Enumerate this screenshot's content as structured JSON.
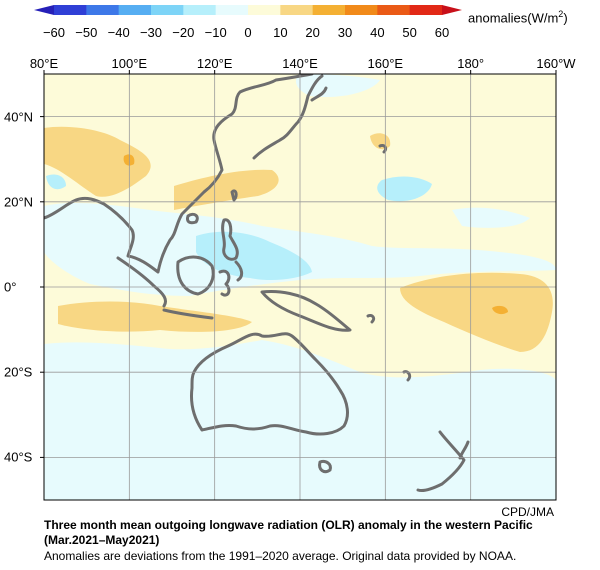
{
  "colorbar": {
    "ticks": [
      "−60",
      "−50",
      "−40",
      "−30",
      "−20",
      "−10",
      "0",
      "10",
      "20",
      "30",
      "40",
      "50",
      "60"
    ],
    "colors": [
      "#2f3fd6",
      "#3d78e8",
      "#56aef2",
      "#7dd4f7",
      "#b6effb",
      "#e7fbfd",
      "#fdfbd9",
      "#f8d784",
      "#f4b033",
      "#f18a1a",
      "#ea5a16",
      "#e22916"
    ],
    "units_prefix": "anomalies(W/m",
    "units_sup": "2",
    "units_suffix": ")"
  },
  "map": {
    "lon_labels": [
      "80°E",
      "100°E",
      "120°E",
      "140°E",
      "160°E",
      "180°",
      "160°W"
    ],
    "lat_labels": [
      "40°N",
      "20°N",
      "0°",
      "20°S",
      "40°S"
    ],
    "lon_range": [
      80,
      200
    ],
    "lat_range": [
      -50,
      50
    ],
    "background_color": "#fdfbd9",
    "coastline_color": "#6e6e6e"
  },
  "credit": "CPD/JMA",
  "caption": {
    "title": "Three month mean outgoing longwave radiation (OLR) anomaly in the western Pacific (Mar.2021–May2021)",
    "note": "Anomalies are deviations from the 1991–2020 average. Original data provided by NOAA."
  }
}
